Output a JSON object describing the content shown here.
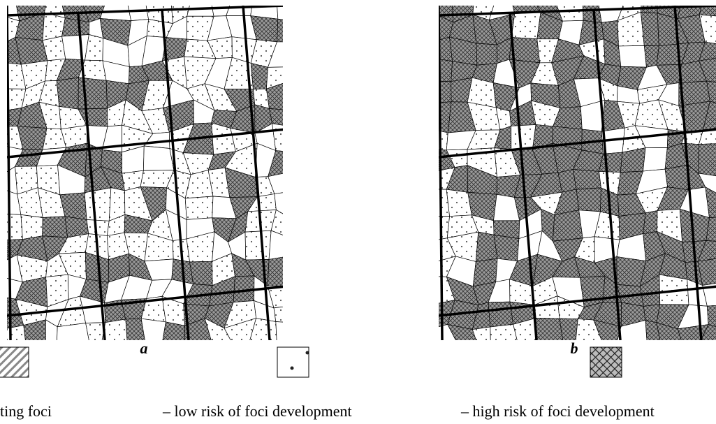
{
  "panels": [
    {
      "label": "a"
    },
    {
      "label": "b"
    }
  ],
  "legend": [
    {
      "label": "ting foci"
    },
    {
      "label": "– low risk of foci development"
    },
    {
      "label": "– high risk of foci development"
    }
  ]
}
